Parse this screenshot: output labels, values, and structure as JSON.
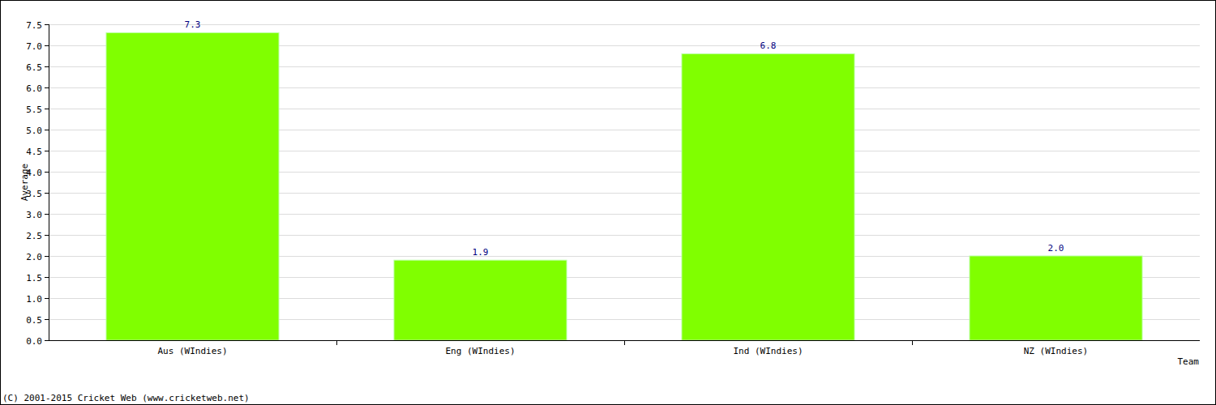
{
  "chart_data": {
    "type": "bar",
    "categories": [
      "Aus (WIndies)",
      "Eng (WIndies)",
      "Ind (WIndies)",
      "NZ (WIndies)"
    ],
    "values": [
      7.3,
      1.9,
      6.8,
      2.0
    ],
    "value_labels": [
      "7.3",
      "1.9",
      "6.8",
      "2.0"
    ],
    "data_labels": true,
    "color": "#80ff00",
    "x_label": "Team",
    "y_label": "Average",
    "annotations": [
      "(C) 2001-2015 Cricket Web (www.cricketweb.net)"
    ],
    "ylim": [
      0,
      7.5
    ],
    "yticks": [
      {
        "value": 0,
        "label": "0.0"
      },
      0.5,
      {
        "value": 1,
        "label": "1.0"
      },
      1.5,
      {
        "value": 2,
        "label": "2.0"
      },
      2.5,
      {
        "value": 3,
        "label": "3.0"
      },
      3.5,
      {
        "value": 4,
        "label": "4.0"
      },
      4.5,
      {
        "value": 5,
        "label": "5.0"
      },
      5.5,
      {
        "value": 6,
        "label": "6.0"
      },
      6.5,
      {
        "value": 7,
        "label": "7.0"
      },
      7.5
    ],
    "grid": true
  }
}
